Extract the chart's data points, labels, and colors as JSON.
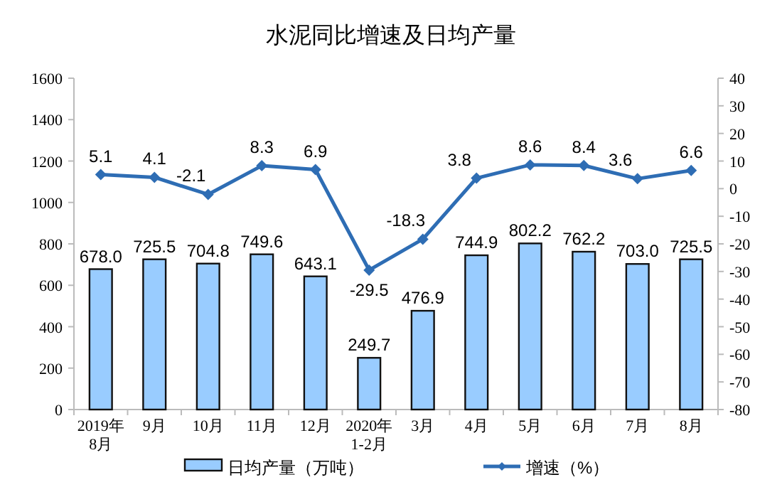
{
  "chart_data": {
    "type": "bar",
    "title": "水泥同比增速及日均产量",
    "categories": [
      "2019年\n8月",
      "9月",
      "10月",
      "11月",
      "12月",
      "2020年\n1-2月",
      "3月",
      "4月",
      "5月",
      "6月",
      "7月",
      "8月"
    ],
    "series": [
      {
        "name": "日均产量（万吨）",
        "color": "#99ccff",
        "values": [
          678.0,
          725.5,
          704.8,
          749.6,
          643.1,
          249.7,
          476.9,
          744.9,
          802.2,
          762.2,
          703.0,
          725.5
        ],
        "value_labels": [
          "678.0",
          "725.5",
          "704.8",
          "749.6",
          "643.1",
          "249.7",
          "476.9",
          "744.9",
          "802.2",
          "762.2",
          "703.0",
          "725.5"
        ]
      },
      {
        "name": "增速（%）",
        "type": "line",
        "axis": "y2",
        "color": "#2e6db4",
        "marker": "diamond",
        "values": [
          5.1,
          4.1,
          -2.1,
          8.3,
          6.9,
          -29.5,
          -18.3,
          3.8,
          8.6,
          8.4,
          3.6,
          6.6
        ],
        "value_labels": [
          "5.1",
          "4.1",
          "-2.1",
          "8.3",
          "6.9",
          "-29.5",
          "-18.3",
          "3.8",
          "8.6",
          "8.4",
          "3.6",
          "6.6"
        ]
      }
    ],
    "ylim": [
      0,
      1600
    ],
    "yticks": [
      0,
      200,
      400,
      600,
      800,
      1000,
      1200,
      1400,
      1600
    ],
    "y2lim": [
      -80,
      40
    ],
    "y2ticks": [
      -80,
      -70,
      -60,
      -50,
      -40,
      -30,
      -20,
      -10,
      0,
      10,
      20,
      30,
      40
    ],
    "legend": "bottom"
  }
}
